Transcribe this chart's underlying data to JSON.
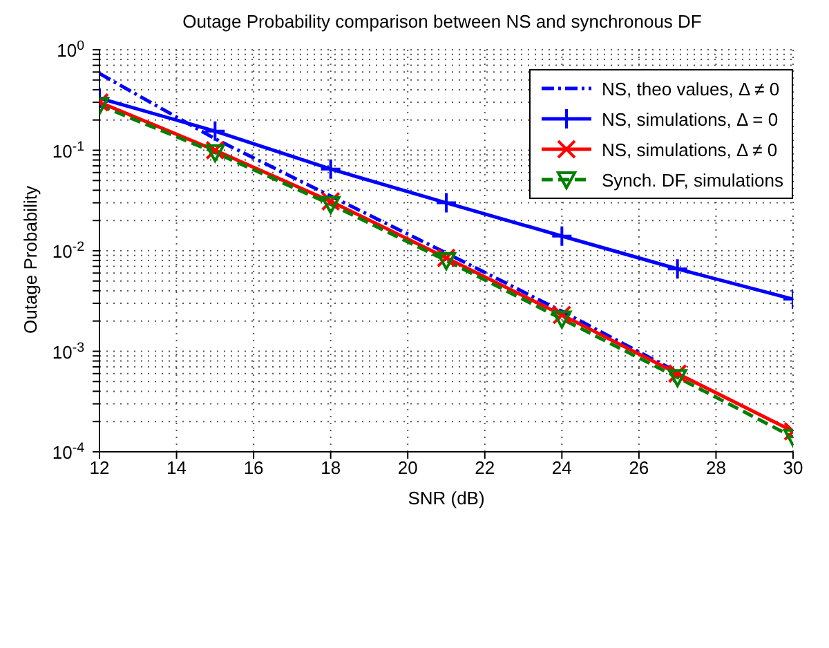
{
  "chart_data": {
    "type": "line",
    "title": "Outage Probability comparison between NS and synchronous DF",
    "xlabel": "SNR (dB)",
    "ylabel": "Outage Probability",
    "x": [
      12,
      15,
      18,
      21,
      24,
      27,
      30
    ],
    "series": [
      {
        "name": "NS, theo values, Δ ≠ 0",
        "color": "#0000ff",
        "line_style": "dashdot",
        "marker": "none",
        "values": [
          0.58,
          0.13,
          0.035,
          0.0095,
          0.0025,
          0.00062,
          null
        ]
      },
      {
        "name": "NS, simulations, Δ = 0",
        "color": "#0000ff",
        "line_style": "solid",
        "marker": "plus",
        "values": [
          0.33,
          0.155,
          0.065,
          0.03,
          0.014,
          0.0066,
          0.0033
        ]
      },
      {
        "name": "NS, simulations, Δ ≠ 0",
        "color": "#ff0000",
        "line_style": "solid",
        "marker": "x",
        "values": [
          0.3,
          0.1,
          0.031,
          0.0085,
          0.0023,
          0.0006,
          0.00016
        ]
      },
      {
        "name": "Synch. DF, simulations",
        "color": "#008000",
        "line_style": "dashed",
        "marker": "triangle_down",
        "values": [
          0.28,
          0.095,
          0.029,
          0.008,
          0.0021,
          0.00055,
          0.00014
        ]
      }
    ],
    "log": "y",
    "xlim": [
      12,
      30
    ],
    "xticks": [
      12,
      14,
      16,
      18,
      20,
      22,
      24,
      26,
      28,
      30
    ],
    "ylim": [
      0.0001,
      1
    ],
    "yticks": [
      {
        "value": 0.0001,
        "label": "10$^{-4}$"
      },
      {
        "value": 0.0002,
        "label": null
      },
      {
        "value": 0.0003,
        "label": null
      },
      {
        "value": 0.0004,
        "label": null
      },
      {
        "value": 0.0005,
        "label": null
      },
      {
        "value": 0.0006,
        "label": null
      },
      {
        "value": 0.0007,
        "label": null
      },
      {
        "value": 0.0008,
        "label": null
      },
      {
        "value": 0.0009,
        "label": null
      },
      {
        "value": 0.001,
        "label": "10$^{-3}$"
      },
      {
        "value": 0.002,
        "label": null
      },
      {
        "value": 0.003,
        "label": null
      },
      {
        "value": 0.004,
        "label": null
      },
      {
        "value": 0.005,
        "label": null
      },
      {
        "value": 0.006,
        "label": null
      },
      {
        "value": 0.007,
        "label": null
      },
      {
        "value": 0.008,
        "label": null
      },
      {
        "value": 0.009,
        "label": null
      },
      {
        "value": 0.01,
        "label": "10$^{-2}$"
      },
      {
        "value": 0.02,
        "label": null
      },
      {
        "value": 0.03,
        "label": null
      },
      {
        "value": 0.04,
        "label": null
      },
      {
        "value": 0.05,
        "label": null
      },
      {
        "value": 0.06,
        "label": null
      },
      {
        "value": 0.07,
        "label": null
      },
      {
        "value": 0.08,
        "label": null
      },
      {
        "value": 0.09,
        "label": null
      },
      {
        "value": 0.1,
        "label": "10$^{-1}$"
      },
      {
        "value": 0.2,
        "label": null
      },
      {
        "value": 0.3,
        "label": null
      },
      {
        "value": 0.4,
        "label": null
      },
      {
        "value": 0.5,
        "label": null
      },
      {
        "value": 0.6,
        "label": null
      },
      {
        "value": 0.7,
        "label": null
      },
      {
        "value": 0.8,
        "label": null
      },
      {
        "value": 0.9,
        "label": null
      },
      {
        "value": 1,
        "label": "10$^{0}$"
      }
    ],
    "grid": true,
    "legend": "top right"
  }
}
